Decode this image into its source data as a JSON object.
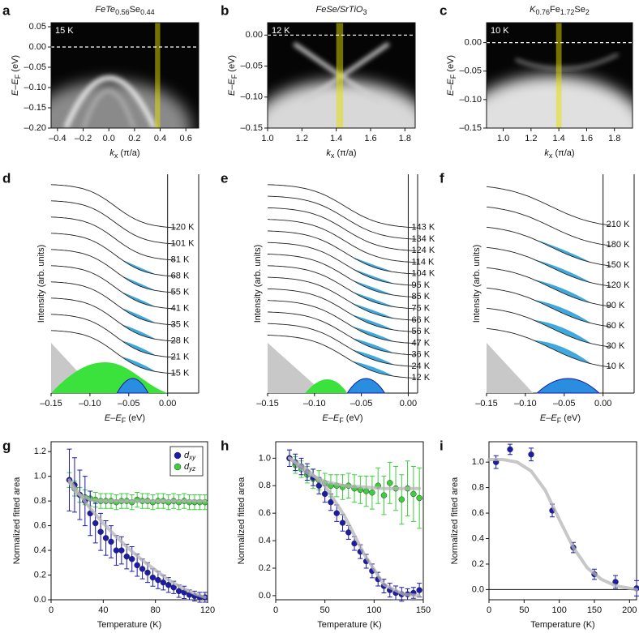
{
  "chart_data": [
    {
      "type": "image",
      "label": "a",
      "title": [
        "FeTe",
        "0.56",
        "Se",
        "0.44"
      ],
      "temperature": "15 K",
      "xlabel": [
        "k",
        "x",
        " (π/a)"
      ],
      "ylabel": [
        "E–E",
        "F",
        " (eV)"
      ],
      "xlim": [
        -0.45,
        0.7
      ],
      "xticks": [
        {
          "value": -0.4,
          "label": "–0.4"
        },
        {
          "value": -0.2,
          "label": "–0.2"
        },
        {
          "value": 0,
          "label": "0.0"
        },
        0.2,
        0.4,
        0.6
      ],
      "ylim": [
        -0.2,
        0.06
      ],
      "yticks": [
        0.05,
        {
          "value": 0,
          "label": "0.00"
        },
        {
          "value": -0.05,
          "label": "–0.05"
        },
        {
          "value": -0.1,
          "label": "–0.10"
        },
        {
          "value": -0.15,
          "label": "–0.15"
        },
        {
          "value": -0.2,
          "label": "–0.20"
        }
      ],
      "highlight": [
        0.36,
        0.4
      ],
      "fermi_level": 0
    },
    {
      "type": "image",
      "label": "b",
      "title": [
        "FeSe/SrTiO",
        "3"
      ],
      "temperature": "12 K",
      "xlabel": [
        "k",
        "x",
        " (π/a)"
      ],
      "ylabel": [
        "E–E",
        "F",
        " (eV)"
      ],
      "xlim": [
        1.0,
        1.86
      ],
      "xticks": [
        {
          "value": 1.0,
          "label": "1.0"
        },
        1.2,
        1.4,
        1.6,
        1.8
      ],
      "ylim": [
        -0.15,
        0.02
      ],
      "yticks": [
        {
          "value": 0,
          "label": "0.00"
        },
        {
          "value": -0.05,
          "label": "–0.05"
        },
        {
          "value": -0.1,
          "label": "–0.10"
        },
        {
          "value": -0.15,
          "label": "–0.15"
        }
      ],
      "highlight": [
        1.4,
        1.44
      ],
      "fermi_level": 0
    },
    {
      "type": "image",
      "label": "c",
      "title": [
        "K",
        "0.76",
        "Fe",
        "1.72",
        "Se",
        "2"
      ],
      "temperature": "10 K",
      "xlabel": [
        "k",
        "x",
        " (π/a)"
      ],
      "ylabel": [
        "E–E",
        "F",
        " (eV)"
      ],
      "xlim": [
        0.88,
        1.93
      ],
      "xticks": [
        {
          "value": 1.0,
          "label": "1.0"
        },
        1.2,
        1.4,
        1.6,
        1.8
      ],
      "ylim": [
        -0.15,
        0.035
      ],
      "yticks": [
        {
          "value": 0,
          "label": "0.00"
        },
        {
          "value": -0.05,
          "label": "–0.05"
        },
        {
          "value": -0.1,
          "label": "–0.10"
        },
        {
          "value": -0.15,
          "label": "–0.15"
        }
      ],
      "highlight": [
        1.38,
        1.42
      ],
      "fermi_level": 0
    },
    {
      "type": "edc",
      "label": "d",
      "xlabel": [
        "E–E",
        "F",
        " (eV)"
      ],
      "ylabel": "Intensity (arb. units)",
      "xlim": [
        -0.15,
        0.04
      ],
      "xticks": [
        {
          "value": -0.15,
          "label": "–0.15"
        },
        {
          "value": -0.1,
          "label": "–0.10"
        },
        {
          "value": -0.05,
          "label": "–0.05"
        },
        {
          "value": 0,
          "label": "0.00"
        }
      ],
      "temperatures": [
        "120 K",
        "101 K",
        "81 K",
        "68 K",
        "55 K",
        "41 K",
        "35 K",
        "28 K",
        "21 K",
        "15 K"
      ],
      "fermi_level": 0
    },
    {
      "type": "edc",
      "label": "e",
      "xlabel": [
        "E–E",
        "F",
        " (eV)"
      ],
      "ylabel": "Intensity (arb. units)",
      "xlim": [
        -0.15,
        0.01
      ],
      "xticks": [
        {
          "value": -0.15,
          "label": "–0.15"
        },
        {
          "value": -0.1,
          "label": "–0.10"
        },
        {
          "value": -0.05,
          "label": "–0.05"
        },
        {
          "value": 0,
          "label": "0.00"
        }
      ],
      "temperatures": [
        "143 K",
        "134 K",
        "124 K",
        "114 K",
        "104 K",
        "95 K",
        "85 K",
        "75 K",
        "66 K",
        "56 K",
        "47 K",
        "36 K",
        "24 K",
        "12 K"
      ],
      "fermi_level": 0
    },
    {
      "type": "edc",
      "label": "f",
      "xlabel": [
        "E–E",
        "F",
        " (eV)"
      ],
      "ylabel": "Intensity (arb. units)",
      "xlim": [
        -0.15,
        0.04
      ],
      "xticks": [
        {
          "value": -0.15,
          "label": "–0.15"
        },
        {
          "value": -0.1,
          "label": "–0.10"
        },
        {
          "value": -0.05,
          "label": "–0.05"
        },
        {
          "value": 0,
          "label": "0.00"
        }
      ],
      "temperatures": [
        "210 K",
        "180 K",
        "150 K",
        "120 K",
        "90 K",
        "60 K",
        "30 K",
        "10 K"
      ],
      "fermi_level": 0
    },
    {
      "type": "scatter",
      "label": "g",
      "xlabel": "Temperature (K)",
      "ylabel": "Normalized fitted area",
      "xlim": [
        0,
        120
      ],
      "xticks": [
        0,
        40,
        80,
        120
      ],
      "ylim": [
        0,
        1.28
      ],
      "yticks": [
        {
          "value": 0,
          "label": "0.0"
        },
        0.2,
        0.4,
        0.6,
        0.8,
        {
          "value": 1,
          "label": "1.0"
        },
        1.2
      ],
      "legend": "upper right",
      "series": [
        {
          "name": "dxy",
          "color": "#1c1ca8",
          "x": [
            14,
            18,
            22,
            26,
            30,
            34,
            38,
            42,
            46,
            50,
            54,
            58,
            62,
            66,
            70,
            74,
            78,
            82,
            86,
            90,
            94,
            98,
            102,
            106,
            110,
            114,
            118
          ],
          "values": [
            0.97,
            0.93,
            0.85,
            0.8,
            0.7,
            0.62,
            0.55,
            0.5,
            0.47,
            0.4,
            0.4,
            0.35,
            0.33,
            0.28,
            0.25,
            0.22,
            0.18,
            0.16,
            0.14,
            0.12,
            0.1,
            0.07,
            0.06,
            0.04,
            0.03,
            0.02,
            0.02
          ],
          "errors": [
            0.25,
            0.22,
            0.2,
            0.2,
            0.18,
            0.16,
            0.15,
            0.14,
            0.13,
            0.12,
            0.11,
            0.1,
            0.1,
            0.09,
            0.08,
            0.08,
            0.07,
            0.07,
            0.06,
            0.06,
            0.05,
            0.05,
            0.05,
            0.04,
            0.04,
            0.04,
            0.04
          ]
        },
        {
          "name": "dyz",
          "color": "#3ccf3c",
          "x": [
            14,
            18,
            22,
            26,
            30,
            34,
            38,
            42,
            46,
            50,
            54,
            58,
            62,
            66,
            70,
            74,
            78,
            82,
            86,
            90,
            94,
            98,
            102,
            106,
            110,
            114,
            118
          ],
          "values": [
            0.97,
            0.9,
            0.85,
            0.83,
            0.82,
            0.81,
            0.8,
            0.8,
            0.8,
            0.79,
            0.8,
            0.8,
            0.79,
            0.81,
            0.8,
            0.8,
            0.79,
            0.8,
            0.8,
            0.79,
            0.8,
            0.79,
            0.8,
            0.79,
            0.79,
            0.79,
            0.79
          ],
          "errors": [
            0.06,
            0.06,
            0.06,
            0.06,
            0.06,
            0.06,
            0.06,
            0.06,
            0.06,
            0.06,
            0.06,
            0.06,
            0.06,
            0.06,
            0.06,
            0.06,
            0.06,
            0.06,
            0.06,
            0.06,
            0.06,
            0.06,
            0.06,
            0.06,
            0.06,
            0.06,
            0.06
          ]
        }
      ],
      "fits": [
        {
          "color": "#b4b4b4",
          "x": [
            14,
            20,
            30,
            40,
            50,
            60,
            70,
            80,
            90,
            100,
            110,
            118
          ],
          "values": [
            0.97,
            0.88,
            0.74,
            0.62,
            0.51,
            0.41,
            0.32,
            0.24,
            0.16,
            0.1,
            0.05,
            0.02
          ]
        },
        {
          "color": "#b4b4b4",
          "x": [
            14,
            20,
            30,
            40,
            60,
            80,
            100,
            118
          ],
          "values": [
            0.95,
            0.86,
            0.81,
            0.8,
            0.8,
            0.8,
            0.8,
            0.8
          ]
        }
      ]
    },
    {
      "type": "scatter",
      "label": "h",
      "xlabel": "Temperature (K)",
      "ylabel": "Normalized fitted area",
      "xlim": [
        0,
        150
      ],
      "xticks": [
        0,
        50,
        100,
        150
      ],
      "ylim": [
        -0.03,
        1.12
      ],
      "yticks": [
        {
          "value": 0,
          "label": "0.0"
        },
        0.2,
        0.4,
        0.6,
        0.8,
        {
          "value": 1,
          "label": "1.0"
        }
      ],
      "series": [
        {
          "color": "#1c1ca8",
          "x": [
            14,
            20,
            26,
            32,
            38,
            44,
            50,
            56,
            62,
            68,
            74,
            80,
            86,
            92,
            98,
            104,
            110,
            116,
            122,
            128,
            134,
            140,
            146
          ],
          "values": [
            1.0,
            0.97,
            0.94,
            0.9,
            0.86,
            0.8,
            0.74,
            0.68,
            0.6,
            0.53,
            0.46,
            0.38,
            0.32,
            0.25,
            0.18,
            0.12,
            0.07,
            0.04,
            0.02,
            0.01,
            0.01,
            0.02,
            0.04
          ],
          "errors": [
            0.06,
            0.06,
            0.06,
            0.06,
            0.06,
            0.06,
            0.06,
            0.06,
            0.06,
            0.06,
            0.05,
            0.05,
            0.05,
            0.05,
            0.05,
            0.05,
            0.05,
            0.05,
            0.05,
            0.05,
            0.04,
            0.04,
            0.05
          ]
        },
        {
          "color": "#3ccf3c",
          "x": [
            14,
            20,
            26,
            32,
            38,
            44,
            50,
            56,
            62,
            68,
            74,
            80,
            86,
            92,
            98,
            104,
            110,
            116,
            122,
            128,
            134,
            140,
            146
          ],
          "values": [
            1.0,
            0.95,
            0.92,
            0.88,
            0.85,
            0.84,
            0.82,
            0.8,
            0.8,
            0.79,
            0.8,
            0.78,
            0.77,
            0.76,
            0.75,
            0.8,
            0.73,
            0.82,
            0.78,
            0.7,
            0.78,
            0.74,
            0.71
          ],
          "errors": [
            0.06,
            0.06,
            0.06,
            0.06,
            0.07,
            0.07,
            0.07,
            0.08,
            0.08,
            0.09,
            0.09,
            0.1,
            0.1,
            0.11,
            0.12,
            0.13,
            0.14,
            0.15,
            0.16,
            0.18,
            0.2,
            0.2,
            0.22
          ]
        }
      ],
      "fits": [
        {
          "color": "#b4b4b4",
          "x": [
            14,
            30,
            50,
            70,
            90,
            110,
            130,
            146
          ],
          "values": [
            1.0,
            0.93,
            0.8,
            0.58,
            0.3,
            0.08,
            0.01,
            0.0
          ]
        },
        {
          "color": "#b4b4b4",
          "x": [
            14,
            30,
            50,
            70,
            90,
            110,
            130,
            146
          ],
          "values": [
            1.0,
            0.9,
            0.83,
            0.8,
            0.79,
            0.78,
            0.78,
            0.78
          ]
        }
      ]
    },
    {
      "type": "scatter",
      "label": "i",
      "xlabel": "Temperature (K)",
      "ylabel": "Normalized fitted area",
      "xlim": [
        0,
        210
      ],
      "xticks": [
        0,
        50,
        100,
        150,
        200
      ],
      "ylim": [
        -0.08,
        1.16
      ],
      "yticks": [
        {
          "value": 0,
          "label": "0.0"
        },
        0.2,
        0.4,
        0.6,
        0.8,
        {
          "value": 1,
          "label": "1.0"
        }
      ],
      "series": [
        {
          "color": "#1c1ca8",
          "x": [
            10,
            30,
            60,
            90,
            120,
            150,
            180,
            210
          ],
          "values": [
            1.0,
            1.1,
            1.06,
            0.62,
            0.33,
            0.12,
            0.06,
            0.01
          ],
          "errors": [
            0.05,
            0.04,
            0.05,
            0.05,
            0.04,
            0.04,
            0.05,
            0.06
          ]
        }
      ],
      "fits": [
        {
          "color": "#b4b4b4",
          "x": [
            0,
            20,
            40,
            60,
            80,
            100,
            120,
            140,
            160,
            180,
            200,
            210
          ],
          "values": [
            1.02,
            1.02,
            1.0,
            0.93,
            0.78,
            0.55,
            0.33,
            0.17,
            0.08,
            0.03,
            0.01,
            0.0
          ]
        }
      ]
    }
  ]
}
